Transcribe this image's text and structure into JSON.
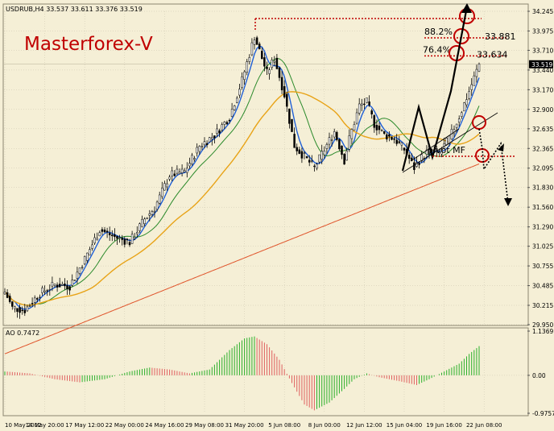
{
  "header": {
    "symbol_line": "USDRUB,H4  33.537 33.611 33.376 33.519"
  },
  "watermark": "Masterforex-V",
  "colors": {
    "background": "#f5efd6",
    "grid": "#bfb9a3",
    "candle": "#000000",
    "ma_fast": "#1f5fd6",
    "ma_mid": "#2b8a2b",
    "ma_slow": "#e8a317",
    "ma_long": "#e0552c",
    "ao_up": "#2bb02b",
    "ao_down": "#e06060",
    "annotation": "#c00000",
    "watermark": "#c00000"
  },
  "chart_data": [
    {
      "type": "candlestick",
      "title": "",
      "y_ticks": [
        "34.245",
        "33.975",
        "33.710",
        "33.440",
        "33.170",
        "32.900",
        "32.635",
        "32.365",
        "32.095",
        "31.830",
        "31.560",
        "31.290",
        "31.025",
        "30.755",
        "30.485",
        "30.215",
        "29.950"
      ],
      "ylim": [
        29.95,
        34.245
      ],
      "x_ticks": [
        "10 May 2012",
        "14 May 20:00",
        "17 May 12:00",
        "22 May 00:00",
        "24 May 16:00",
        "29 May 08:00",
        "31 May 20:00",
        "5 Jun 08:00",
        "8 Jun 00:00",
        "12 Jun 12:00",
        "15 Jun 04:00",
        "19 Jun 16:00",
        "22 Jun 08:00"
      ],
      "current_price": "33.519",
      "close_anchors": [
        [
          0,
          30.4
        ],
        [
          3,
          30.18
        ],
        [
          8,
          30.15
        ],
        [
          14,
          30.38
        ],
        [
          20,
          30.5
        ],
        [
          26,
          30.48
        ],
        [
          32,
          30.85
        ],
        [
          38,
          31.25
        ],
        [
          44,
          31.15
        ],
        [
          50,
          31.08
        ],
        [
          56,
          31.4
        ],
        [
          60,
          31.55
        ],
        [
          66,
          32.0
        ],
        [
          72,
          32.05
        ],
        [
          78,
          32.4
        ],
        [
          84,
          32.55
        ],
        [
          90,
          32.8
        ],
        [
          95,
          33.3
        ],
        [
          100,
          33.9
        ],
        [
          105,
          33.4
        ],
        [
          108,
          33.6
        ],
        [
          112,
          33.1
        ],
        [
          116,
          32.4
        ],
        [
          120,
          32.25
        ],
        [
          124,
          32.1
        ],
        [
          128,
          32.35
        ],
        [
          132,
          32.6
        ],
        [
          136,
          32.2
        ],
        [
          138,
          32.5
        ],
        [
          142,
          32.95
        ],
        [
          145,
          33.0
        ],
        [
          148,
          32.7
        ],
        [
          152,
          32.55
        ],
        [
          156,
          32.5
        ],
        [
          160,
          32.35
        ],
        [
          164,
          32.1
        ],
        [
          166,
          32.2
        ],
        [
          170,
          32.35
        ],
        [
          174,
          32.3
        ],
        [
          178,
          32.5
        ],
        [
          182,
          32.8
        ],
        [
          186,
          33.15
        ],
        [
          190,
          33.52
        ]
      ],
      "fibonacci": [
        {
          "label": "88.2%",
          "value": "33.881"
        },
        {
          "label": "76.4%",
          "value": "33.634"
        }
      ],
      "annotations": [
        "pivot MF"
      ]
    },
    {
      "type": "bar",
      "title": "AO 0.7472",
      "y_ticks": [
        "1.1369",
        "0.00",
        "-0.9757"
      ],
      "ylim": [
        -0.9757,
        1.1369
      ],
      "ao_anchors": [
        [
          0,
          0.1
        ],
        [
          10,
          0.05
        ],
        [
          20,
          -0.1
        ],
        [
          30,
          -0.18
        ],
        [
          40,
          -0.1
        ],
        [
          50,
          0.1
        ],
        [
          58,
          0.2
        ],
        [
          66,
          0.15
        ],
        [
          74,
          0.05
        ],
        [
          82,
          0.15
        ],
        [
          90,
          0.65
        ],
        [
          96,
          0.95
        ],
        [
          100,
          1.0
        ],
        [
          105,
          0.8
        ],
        [
          110,
          0.4
        ],
        [
          115,
          -0.2
        ],
        [
          120,
          -0.75
        ],
        [
          124,
          -0.9
        ],
        [
          130,
          -0.7
        ],
        [
          136,
          -0.35
        ],
        [
          140,
          -0.1
        ],
        [
          145,
          0.05
        ],
        [
          150,
          -0.05
        ],
        [
          158,
          -0.15
        ],
        [
          165,
          -0.25
        ],
        [
          170,
          -0.1
        ],
        [
          176,
          0.1
        ],
        [
          182,
          0.3
        ],
        [
          186,
          0.55
        ],
        [
          190,
          0.75
        ]
      ]
    }
  ]
}
